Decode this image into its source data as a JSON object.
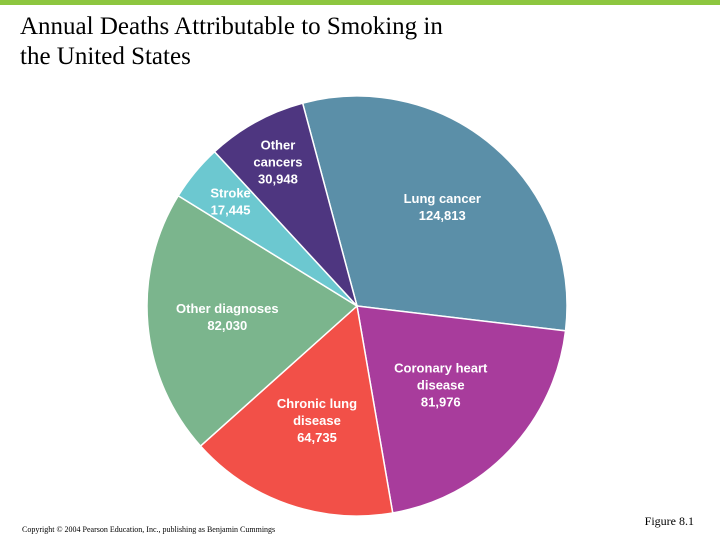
{
  "slide": {
    "title_line1": "Annual Deaths Attributable to Smoking in",
    "title_line2": "the United States",
    "copyright": "Copyright © 2004 Pearson Education, Inc., publishing as Benjamin Cummings",
    "figure_label": "Figure 8.1"
  },
  "chart_data": {
    "type": "pie",
    "title": "Annual Deaths Attributable to Smoking in the United States",
    "slices": [
      {
        "label": [
          "Lung cancer"
        ],
        "value_text": "124,813",
        "value": 124813,
        "color": "#5b8fa8"
      },
      {
        "label": [
          "Coronary heart",
          "disease"
        ],
        "value_text": "81,976",
        "value": 81976,
        "color": "#a83c9c"
      },
      {
        "label": [
          "Chronic lung",
          "disease"
        ],
        "value_text": "64,735",
        "value": 64735,
        "color": "#f25048"
      },
      {
        "label": [
          "Other diagnoses"
        ],
        "value_text": "82,030",
        "value": 82030,
        "color": "#7bb58d"
      },
      {
        "label": [
          "Stroke"
        ],
        "value_text": "17,445",
        "value": 17445,
        "color": "#6cc8d0"
      },
      {
        "label": [
          "Other",
          "cancers"
        ],
        "value_text": "30,948",
        "value": 30948,
        "color": "#4e3680"
      }
    ]
  }
}
